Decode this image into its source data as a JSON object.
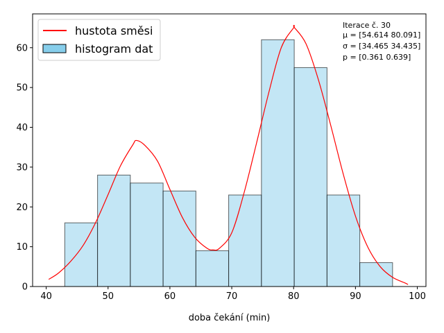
{
  "chart_data": {
    "type": "bar",
    "xlabel": "doba čekání (min)",
    "ylabel": "",
    "xlim": [
      37.8,
      101.4
    ],
    "ylim": [
      0,
      68.5
    ],
    "xticks": [
      40,
      50,
      60,
      70,
      80,
      90,
      100
    ],
    "yticks": [
      0,
      10,
      20,
      30,
      40,
      50,
      60
    ],
    "grid": false,
    "legend_position": "upper-left",
    "legend": [
      {
        "label": "hustota směsi",
        "kind": "line",
        "color": "#ff0000"
      },
      {
        "label": "histogram dat",
        "kind": "patch",
        "color": "#87ceeb"
      }
    ],
    "histogram": {
      "name": "histogram dat",
      "color": "#87ceeb",
      "edge_color": "#000000",
      "bins": [
        43.0,
        48.3,
        53.6,
        58.9,
        64.2,
        69.5,
        74.8,
        80.1,
        85.4,
        90.7,
        96.0
      ],
      "counts": [
        16,
        28,
        26,
        24,
        9,
        23,
        62,
        55,
        23,
        6
      ]
    },
    "density_curve": {
      "name": "hustota směsi",
      "color": "#ff0000",
      "x": [
        40.4,
        42,
        44,
        46,
        48,
        50,
        52,
        54,
        54.6,
        56,
        58,
        60,
        62,
        64,
        66,
        67,
        68,
        70,
        72,
        74,
        76,
        78,
        80,
        80.1,
        82,
        84,
        86,
        88,
        90,
        92,
        94,
        96,
        98,
        98.5
      ],
      "y": [
        1.8,
        3.4,
        6.4,
        10.4,
        16.1,
        23.1,
        30.3,
        35.6,
        36.7,
        35.4,
        31.5,
        24.4,
        17.4,
        12.4,
        9.6,
        9.2,
        9.6,
        13.5,
        23.6,
        36.0,
        48.8,
        60.0,
        65.0,
        65.1,
        61.0,
        52.0,
        40.5,
        28.4,
        17.7,
        9.9,
        5.0,
        2.3,
        0.9,
        0.5
      ]
    },
    "annotation_lines": [
      {
        "key": "iter",
        "text": "Iterace č. 30"
      },
      {
        "key": "mu",
        "text": "μ = [54.614 80.091]"
      },
      {
        "key": "sigma",
        "text": "σ = [34.465 34.435]"
      },
      {
        "key": "p",
        "text": "p = [0.361 0.639]"
      }
    ]
  }
}
